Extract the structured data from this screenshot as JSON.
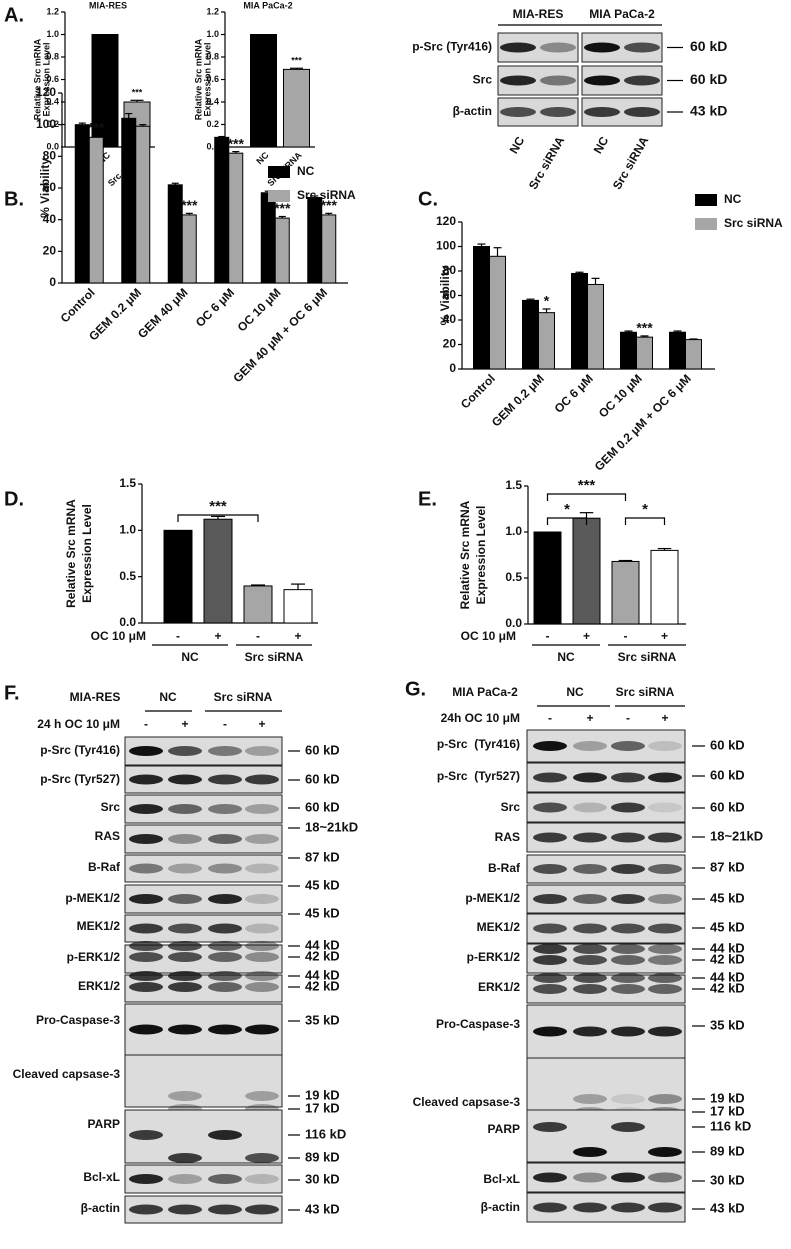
{
  "panel_labels": [
    "A.",
    "B.",
    "C.",
    "D.",
    "E.",
    "F.",
    "G."
  ],
  "chart_data": [
    {
      "type": "bar",
      "title": "MIA-RES",
      "ylabel": [
        "Relative Src mRNA",
        "Expression Level"
      ],
      "categories": [
        "NC",
        "Src siRNA"
      ],
      "values": [
        1.0,
        0.4
      ],
      "errors": [
        0,
        0.015
      ],
      "colors": [
        "#000000",
        "#a6a6a6"
      ],
      "ylim": [
        0,
        1.2
      ],
      "yticks": [
        {
          "value": 0,
          "label": "0.0"
        },
        0.2,
        0.4,
        0.6,
        0.8,
        {
          "value": 1,
          "label": "1.0"
        },
        1.2
      ],
      "annotations": [
        {
          "text": "***",
          "index": 1
        }
      ]
    },
    {
      "type": "bar",
      "title": "MIA PaCa-2",
      "ylabel": [
        "Relative Src mRNA",
        "Expression Level"
      ],
      "categories": [
        "NC",
        "Src siRNA"
      ],
      "values": [
        1.0,
        0.69
      ],
      "errors": [
        0,
        0.01
      ],
      "colors": [
        "#000000",
        "#a6a6a6"
      ],
      "ylim": [
        0,
        1.2
      ],
      "yticks": [
        {
          "value": 0,
          "label": "0.0"
        },
        0.2,
        0.4,
        0.6,
        0.8,
        {
          "value": 1,
          "label": "1.0"
        },
        1.2
      ],
      "annotations": [
        {
          "text": "***",
          "index": 1
        }
      ]
    },
    {
      "type": "bar",
      "ylabel": [
        "% Viability"
      ],
      "categories": [
        "Control",
        "GEM 0.2 μM",
        "GEM 40 μM",
        "OC 6 μM",
        "OC 10 μM",
        "GEM 40 μM + OC 6 μM"
      ],
      "series": [
        {
          "name": "NC",
          "color": "#000000",
          "values": [
            100,
            104,
            62,
            92,
            57,
            54
          ],
          "errors": [
            1,
            3,
            1,
            0.5,
            1,
            1
          ]
        },
        {
          "name": "Src siRNA",
          "color": "#a6a6a6",
          "values": [
            92,
            99,
            43,
            82,
            41,
            43
          ],
          "errors": [
            1,
            1,
            1,
            1,
            1,
            1
          ]
        }
      ],
      "ylim": [
        0,
        120
      ],
      "yticks": [
        0,
        20,
        40,
        60,
        80,
        100,
        120
      ],
      "annotations": [
        {
          "text": "***",
          "series": 1,
          "index": 0
        },
        {
          "text": "***",
          "series": 1,
          "index": 2
        },
        {
          "text": "***",
          "series": 1,
          "index": 3
        },
        {
          "text": "***",
          "series": 1,
          "index": 4
        },
        {
          "text": "***",
          "series": 1,
          "index": 5
        }
      ]
    },
    {
      "type": "bar",
      "ylabel": [
        "% Viability"
      ],
      "categories": [
        "Control",
        "GEM 0.2 μM",
        "OC 6 μM",
        "OC 10 μM",
        "GEM 0.2 μM + OC 6 μM"
      ],
      "series": [
        {
          "name": "NC",
          "color": "#000000",
          "values": [
            100,
            56,
            78,
            30,
            30
          ],
          "errors": [
            2,
            1,
            1,
            1,
            1
          ]
        },
        {
          "name": "Src siRNA",
          "color": "#a6a6a6",
          "values": [
            92,
            46,
            69,
            26,
            24
          ],
          "errors": [
            7,
            3,
            5,
            1,
            0.5
          ]
        }
      ],
      "ylim": [
        0,
        120
      ],
      "yticks": [
        0,
        20,
        40,
        60,
        80,
        100,
        120
      ],
      "annotations": [
        {
          "text": "*",
          "series": 1,
          "index": 1
        },
        {
          "text": "***",
          "series": 1,
          "index": 3
        }
      ]
    },
    {
      "type": "bar",
      "ylabel": [
        "Relative Src mRNA",
        "Expression Level"
      ],
      "x_label": "OC 10 μM",
      "categories": [
        "-",
        "+",
        "-",
        "+"
      ],
      "groups": [
        "NC",
        "Src siRNA"
      ],
      "values": [
        1.0,
        1.12,
        0.4,
        0.36
      ],
      "errors": [
        0,
        0.03,
        0.01,
        0.06
      ],
      "colors": [
        "#000000",
        "#595959",
        "#a6a6a6",
        "#ffffff"
      ],
      "ylim": [
        0,
        1.5
      ],
      "yticks": [
        {
          "value": 0,
          "label": "0.0"
        },
        0.5,
        {
          "value": 1,
          "label": "1.0"
        },
        1.5
      ],
      "significance": [
        {
          "text": "***",
          "from": 0,
          "to": 2
        }
      ]
    },
    {
      "type": "bar",
      "ylabel": [
        "Relative Src mRNA",
        "Expression Level"
      ],
      "x_label": "OC 10 μM",
      "categories": [
        "-",
        "+",
        "-",
        "+"
      ],
      "groups": [
        "NC",
        "Src siRNA"
      ],
      "values": [
        1.0,
        1.15,
        0.68,
        0.8
      ],
      "errors": [
        0,
        0.06,
        0.01,
        0.02
      ],
      "colors": [
        "#000000",
        "#595959",
        "#a6a6a6",
        "#ffffff"
      ],
      "ylim": [
        0,
        1.5
      ],
      "yticks": [
        {
          "value": 0,
          "label": "0.0"
        },
        0.5,
        {
          "value": 1,
          "label": "1.0"
        },
        1.5
      ],
      "significance": [
        {
          "text": "***",
          "from": 0,
          "to": 2
        },
        {
          "text": "*",
          "from": 0,
          "to": 1
        },
        {
          "text": "*",
          "from": 2,
          "to": 3
        }
      ]
    }
  ],
  "blots": {
    "A": {
      "groups": [
        "MIA-RES",
        "MIA PaCa-2"
      ],
      "lanes": [
        "NC",
        "Src siRNA",
        "NC",
        "Src siRNA"
      ],
      "rows": [
        {
          "label": "p-Src (Tyr416)",
          "sizes": [
            "60 kD"
          ]
        },
        {
          "label": "Src",
          "sizes": [
            "60 kD"
          ]
        },
        {
          "label": "β-actin",
          "sizes": [
            "43 kD"
          ]
        }
      ]
    },
    "F": {
      "cell_line": "MIA-RES",
      "groups": [
        "NC",
        "Src siRNA"
      ],
      "treatment": "24 h OC 10 μM",
      "signs": [
        "-",
        "+",
        "-",
        "+"
      ],
      "rows": [
        {
          "label": "p-Src (Tyr416)",
          "sizes": [
            "60 kD"
          ]
        },
        {
          "label": "p-Src (Tyr527)",
          "sizes": [
            "60 kD"
          ]
        },
        {
          "label": "Src",
          "sizes": [
            "60 kD"
          ]
        },
        {
          "label": "RAS",
          "sizes": [
            "18~21kD"
          ]
        },
        {
          "label": "B-Raf",
          "sizes": [
            "87 kD"
          ]
        },
        {
          "label": "p-MEK1/2",
          "sizes": [
            "45 kD"
          ]
        },
        {
          "label": "MEK1/2",
          "sizes": [
            "45 kD"
          ]
        },
        {
          "label": "p-ERK1/2",
          "sizes": [
            "44 kD",
            "42 kD"
          ]
        },
        {
          "label": "ERK1/2",
          "sizes": [
            "44 kD",
            "42 kD"
          ]
        },
        {
          "label": "Pro-Caspase-3",
          "sizes": [
            "35 kD"
          ]
        },
        {
          "label": "Cleaved capsase-3",
          "sizes": [
            "19 kD",
            "17 kD"
          ]
        },
        {
          "label": "PARP",
          "sizes": [
            "116 kD",
            "89 kD"
          ]
        },
        {
          "label": "Bcl-xL",
          "sizes": [
            "30 kD"
          ]
        },
        {
          "label": "β-actin",
          "sizes": [
            "43 kD"
          ]
        }
      ]
    },
    "G": {
      "cell_line": "MIA PaCa-2",
      "groups": [
        "NC",
        "Src siRNA"
      ],
      "treatment": "24h OC 10 μM",
      "signs": [
        "-",
        "+",
        "-",
        "+"
      ],
      "rows": [
        {
          "label": "p-Src  (Tyr416)",
          "sizes": [
            "60 kD"
          ]
        },
        {
          "label": "p-Src  (Tyr527)",
          "sizes": [
            "60 kD"
          ]
        },
        {
          "label": "Src",
          "sizes": [
            "60 kD"
          ]
        },
        {
          "label": "RAS",
          "sizes": [
            "18~21kD"
          ]
        },
        {
          "label": "B-Raf",
          "sizes": [
            "87 kD"
          ]
        },
        {
          "label": "p-MEK1/2",
          "sizes": [
            "45 kD"
          ]
        },
        {
          "label": "MEK1/2",
          "sizes": [
            "45 kD"
          ]
        },
        {
          "label": "p-ERK1/2",
          "sizes": [
            "44 kD",
            "42 kD"
          ]
        },
        {
          "label": "ERK1/2",
          "sizes": [
            "44 kD",
            "42 kD"
          ]
        },
        {
          "label": "Pro-Caspase-3",
          "sizes": [
            "35 kD"
          ]
        },
        {
          "label": "Cleaved capsase-3",
          "sizes": [
            "19 kD",
            "17 kD"
          ]
        },
        {
          "label": "PARP",
          "sizes": [
            "116 kD",
            "89 kD"
          ]
        },
        {
          "label": "Bcl-xL",
          "sizes": [
            "30 kD"
          ]
        },
        {
          "label": "β-actin",
          "sizes": [
            "43 kD"
          ]
        }
      ]
    }
  }
}
